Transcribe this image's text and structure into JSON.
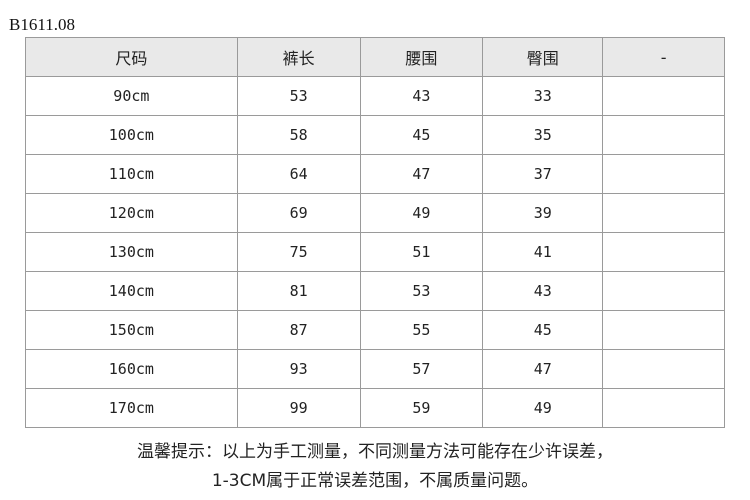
{
  "product_code": "B1611.08",
  "table": {
    "headers": [
      "尺码",
      "裤长",
      "腰围",
      "臀围",
      "-"
    ],
    "rows": [
      [
        "90cm",
        "53",
        "43",
        "33",
        ""
      ],
      [
        "100cm",
        "58",
        "45",
        "35",
        ""
      ],
      [
        "110cm",
        "64",
        "47",
        "37",
        ""
      ],
      [
        "120cm",
        "69",
        "49",
        "39",
        ""
      ],
      [
        "130cm",
        "75",
        "51",
        "41",
        ""
      ],
      [
        "140cm",
        "81",
        "53",
        "43",
        ""
      ],
      [
        "150cm",
        "87",
        "55",
        "45",
        ""
      ],
      [
        "160cm",
        "93",
        "57",
        "47",
        ""
      ],
      [
        "170cm",
        "99",
        "59",
        "49",
        ""
      ]
    ]
  },
  "notes": {
    "line1": "温馨提示：以上为手工测量，不同测量方法可能存在少许误差，",
    "line2": "1-3CM属于正常误差范围，不属质量问题。"
  }
}
